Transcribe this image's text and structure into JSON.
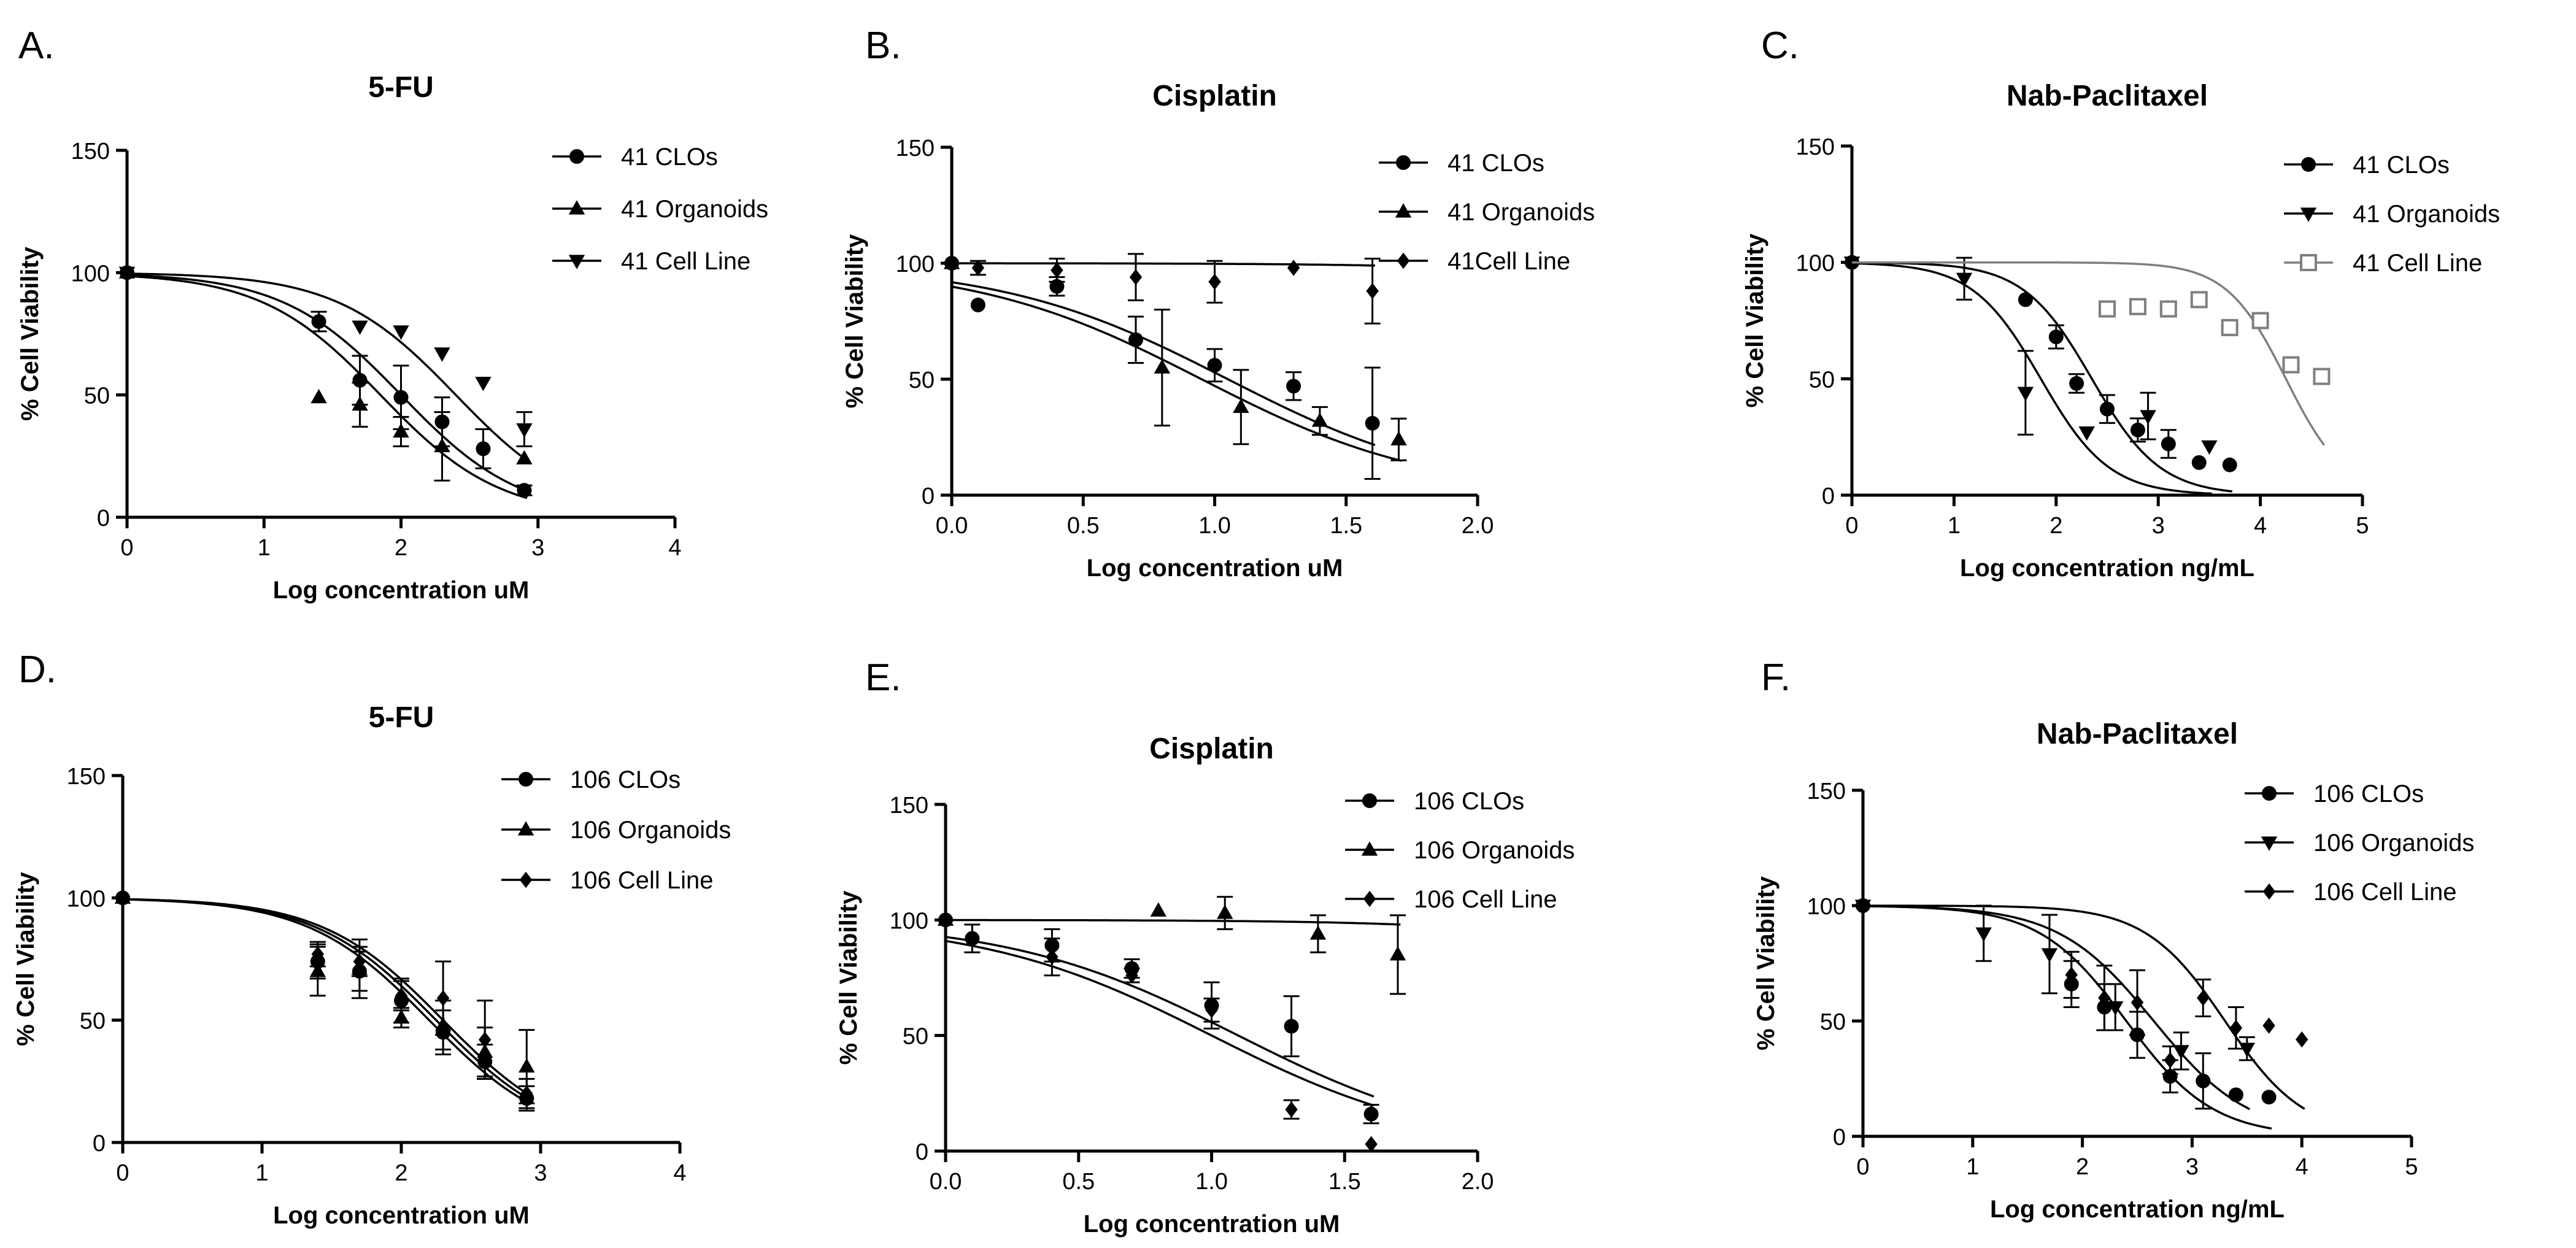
{
  "chart_data": [
    {
      "panel_label": "A.",
      "title": "5-FU",
      "type": "scatter",
      "xlabel": "Log concentration uM",
      "ylabel": "% Cell Viability",
      "xlim": [
        0,
        4
      ],
      "ylim": [
        0,
        150
      ],
      "xticks": [
        "0",
        "1",
        "2",
        "3",
        "4"
      ],
      "yticks": [
        "0",
        "50",
        "100",
        "150"
      ],
      "series": [
        {
          "name": "41 CLOs",
          "marker": "circle",
          "color": "#000000",
          "ic50": 2.0,
          "hill": 1.0,
          "x": [
            0,
            1.4,
            1.7,
            2.0,
            2.3,
            2.6,
            2.9
          ],
          "y": [
            100,
            80,
            56,
            49,
            39,
            28,
            11
          ],
          "err": [
            0,
            4,
            10,
            13,
            10,
            8,
            2
          ]
        },
        {
          "name": "41 Organoids",
          "marker": "triangle-up",
          "color": "#000000",
          "ic50": 1.85,
          "hill": 1.0,
          "x": [
            0,
            1.4,
            1.7,
            2.0,
            2.3,
            2.9
          ],
          "y": [
            100,
            49,
            46,
            35,
            29,
            24
          ],
          "err": [
            0,
            0,
            9,
            6,
            14,
            0
          ]
        },
        {
          "name": "41 Cell Line",
          "marker": "triangle-down",
          "color": "#000000",
          "ic50": 2.4,
          "hill": 1.0,
          "x": [
            0,
            1.7,
            2.0,
            2.3,
            2.6,
            2.9
          ],
          "y": [
            100,
            78,
            76,
            67,
            55,
            36
          ],
          "err": [
            0,
            0,
            0,
            0,
            0,
            7
          ]
        }
      ]
    },
    {
      "panel_label": "B.",
      "title": "Cisplatin",
      "type": "scatter",
      "xlabel": "Log concentration uM",
      "ylabel": "% Cell Viability",
      "xlim": [
        0,
        2.0
      ],
      "ylim": [
        0,
        150
      ],
      "xticks": [
        "0.0",
        "0.5",
        "1.0",
        "1.5",
        "2.0"
      ],
      "yticks": [
        "0",
        "50",
        "100",
        "150"
      ],
      "series": [
        {
          "name": "41 CLOs",
          "marker": "circle",
          "color": "#000000",
          "ic50": 1.05,
          "hill": 1.0,
          "x": [
            0,
            0.1,
            0.4,
            0.7,
            1.0,
            1.3,
            1.6
          ],
          "y": [
            100,
            82,
            90,
            67,
            56,
            47,
            31
          ],
          "err": [
            0,
            0,
            4,
            10,
            7,
            6,
            24
          ]
        },
        {
          "name": "41 Organoids",
          "marker": "triangle-up",
          "color": "#000000",
          "ic50": 0.95,
          "hill": 1.0,
          "x": [
            0,
            0.8,
            1.1,
            1.4,
            1.7
          ],
          "y": [
            100,
            55,
            38,
            32,
            24
          ],
          "err": [
            0,
            25,
            16,
            6,
            9
          ]
        },
        {
          "name": "41Cell Line",
          "marker": "diamond",
          "color": "#000000",
          "ic50": 3.6,
          "hill": 1.0,
          "x": [
            0,
            0.1,
            0.4,
            0.7,
            1.0,
            1.3,
            1.6
          ],
          "y": [
            100,
            98,
            97,
            94,
            92,
            98,
            88
          ],
          "err": [
            0,
            3,
            5,
            10,
            9,
            0,
            14
          ]
        }
      ]
    },
    {
      "panel_label": "C.",
      "title": "Nab-Paclitaxel",
      "type": "scatter",
      "xlabel": "Log concentration ng/mL",
      "ylabel": "% Cell Viability",
      "xlim": [
        0,
        5
      ],
      "ylim": [
        0,
        150
      ],
      "xticks": [
        "0",
        "1",
        "2",
        "3",
        "4",
        "5"
      ],
      "yticks": [
        "0",
        "50",
        "100",
        "150"
      ],
      "series": [
        {
          "name": "41 CLOs",
          "marker": "circle",
          "color": "#000000",
          "ic50": 2.35,
          "hill": 1.3,
          "x": [
            0,
            1.7,
            2.0,
            2.2,
            2.5,
            2.8,
            3.1,
            3.4,
            3.7
          ],
          "y": [
            100,
            84,
            68,
            48,
            37,
            28,
            22,
            14,
            13
          ],
          "err": [
            0,
            0,
            5,
            4,
            6,
            5,
            6,
            0,
            0
          ]
        },
        {
          "name": "41 Organoids",
          "marker": "triangle-down",
          "color": "#000000",
          "ic50": 1.85,
          "hill": 1.3,
          "x": [
            0,
            1.1,
            1.7,
            2.3,
            2.9,
            3.5
          ],
          "y": [
            100,
            93,
            44,
            27,
            34,
            21
          ],
          "err": [
            0,
            9,
            18,
            0,
            10,
            0
          ]
        },
        {
          "name": "41 Cell Line",
          "marker": "square-open",
          "color": "#7f7f7f",
          "ic50": 4.25,
          "hill": 1.5,
          "x": [
            2.5,
            2.8,
            3.1,
            3.4,
            3.7,
            4.0,
            4.3,
            4.6
          ],
          "y": [
            80,
            81,
            80,
            84,
            72,
            75,
            56,
            51
          ],
          "err": [
            0,
            0,
            0,
            0,
            0,
            0,
            0,
            0
          ]
        }
      ]
    },
    {
      "panel_label": "D.",
      "title": "5-FU",
      "type": "scatter",
      "xlabel": "Log concentration uM",
      "ylabel": "% Cell Viability",
      "xlim": [
        0,
        4
      ],
      "ylim": [
        0,
        150
      ],
      "xticks": [
        "0",
        "1",
        "2",
        "3",
        "4"
      ],
      "yticks": [
        "0",
        "50",
        "100",
        "150"
      ],
      "series": [
        {
          "name": "106 CLOs",
          "marker": "circle",
          "color": "#000000",
          "ic50": 2.2,
          "hill": 1.0,
          "x": [
            0,
            1.4,
            1.7,
            2.0,
            2.3,
            2.6,
            2.9
          ],
          "y": [
            100,
            74,
            70,
            58,
            45,
            33,
            18
          ],
          "err": [
            0,
            7,
            8,
            9,
            9,
            7,
            5
          ]
        },
        {
          "name": "106 Organoids",
          "marker": "triangle-up",
          "color": "#000000",
          "ic50": 2.25,
          "hill": 1.0,
          "x": [
            0,
            1.4,
            1.7,
            2.0,
            2.3,
            2.6,
            2.9
          ],
          "y": [
            100,
            70,
            71,
            51,
            48,
            37,
            31
          ],
          "err": [
            0,
            10,
            12,
            4,
            10,
            10,
            15
          ]
        },
        {
          "name": "106 Cell Line",
          "marker": "diamond",
          "color": "#000000",
          "ic50": 2.3,
          "hill": 1.0,
          "x": [
            0,
            1.4,
            1.7,
            2.0,
            2.3,
            2.6,
            2.9
          ],
          "y": [
            100,
            77,
            74,
            60,
            59,
            42,
            20
          ],
          "err": [
            0,
            5,
            6,
            6,
            15,
            16,
            6
          ]
        }
      ]
    },
    {
      "panel_label": "E.",
      "title": "Cisplatin",
      "type": "scatter",
      "xlabel": "Log concentration uM",
      "ylabel": "% Cell Viability",
      "xlim": [
        0,
        2.0
      ],
      "ylim": [
        0,
        150
      ],
      "xticks": [
        "0.0",
        "0.5",
        "1.0",
        "1.5",
        "2.0"
      ],
      "yticks": [
        "0",
        "50",
        "100",
        "150"
      ],
      "series": [
        {
          "name": "106 CLOs",
          "marker": "circle",
          "color": "#000000",
          "ic50": 1.1,
          "hill": 1.0,
          "x": [
            0,
            0.1,
            0.4,
            0.7,
            1.0,
            1.3,
            1.6
          ],
          "y": [
            100,
            92,
            89,
            79,
            63,
            54,
            16
          ],
          "err": [
            0,
            6,
            7,
            4,
            10,
            13,
            4
          ]
        },
        {
          "name": "106 Organoids",
          "marker": "triangle-up",
          "color": "#000000",
          "ic50": 3.4,
          "hill": 1.0,
          "x": [
            0,
            0.8,
            1.05,
            1.4,
            1.7
          ],
          "y": [
            100,
            104,
            103,
            94,
            85
          ],
          "err": [
            0,
            0,
            7,
            8,
            17
          ]
        },
        {
          "name": "106 Cell Line",
          "marker": "diamond",
          "color": "#000000",
          "ic50": 1.0,
          "hill": 1.0,
          "x": [
            0,
            0.1,
            0.4,
            0.7,
            1.0,
            1.3,
            1.6
          ],
          "y": [
            100,
            92,
            84,
            76,
            61,
            18,
            3
          ],
          "err": [
            0,
            0,
            8,
            3,
            5,
            4,
            0
          ]
        }
      ]
    },
    {
      "panel_label": "F.",
      "title": "Nab-Paclitaxel",
      "type": "scatter",
      "xlabel": "Log concentration ng/mL",
      "ylabel": "% Cell Viability",
      "xlim": [
        0,
        5
      ],
      "ylim": [
        0,
        150
      ],
      "xticks": [
        "0",
        "1",
        "2",
        "3",
        "4",
        "5"
      ],
      "yticks": [
        "0",
        "50",
        "100",
        "150"
      ],
      "series": [
        {
          "name": "106 CLOs",
          "marker": "circle",
          "color": "#000000",
          "ic50": 2.4,
          "hill": 1.1,
          "x": [
            0,
            1.9,
            2.2,
            2.5,
            2.8,
            3.1,
            3.4,
            3.7
          ],
          "y": [
            100,
            66,
            56,
            44,
            26,
            24,
            18,
            17
          ],
          "err": [
            0,
            10,
            10,
            10,
            7,
            12,
            0,
            0
          ]
        },
        {
          "name": "106 Organoids",
          "marker": "triangle-down",
          "color": "#000000",
          "ic50": 2.65,
          "hill": 1.0,
          "x": [
            0,
            1.1,
            1.7,
            2.3,
            2.9,
            3.5
          ],
          "y": [
            100,
            88,
            79,
            56,
            37,
            38
          ],
          "err": [
            0,
            12,
            17,
            10,
            8,
            5
          ]
        },
        {
          "name": "106 Cell Line",
          "marker": "diamond",
          "color": "#000000",
          "ic50": 3.3,
          "hill": 1.2,
          "x": [
            0,
            1.9,
            2.2,
            2.5,
            2.8,
            3.1,
            3.4,
            3.7,
            4.0
          ],
          "y": [
            100,
            70,
            60,
            58,
            33,
            60,
            47,
            48,
            42
          ],
          "err": [
            0,
            10,
            14,
            14,
            6,
            8,
            9,
            0,
            0
          ]
        }
      ]
    }
  ]
}
